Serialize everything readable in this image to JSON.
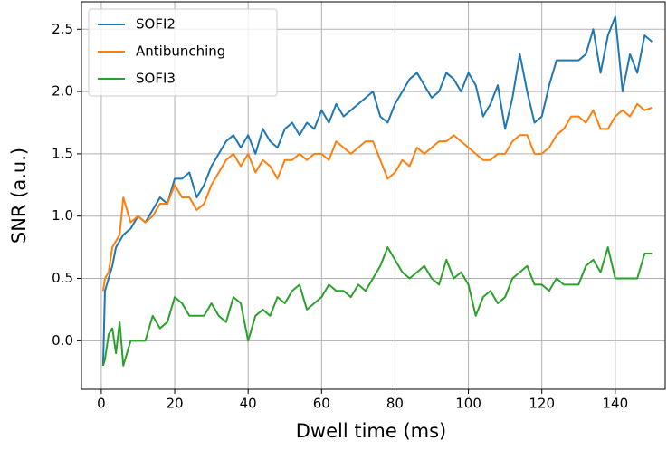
{
  "chart_data": {
    "type": "line",
    "xlabel": "Dwell time (ms)",
    "ylabel": "SNR (a.u.)",
    "x": [
      0.5,
      1,
      2,
      3,
      4,
      5,
      6,
      8,
      10,
      12,
      14,
      16,
      18,
      20,
      22,
      24,
      26,
      28,
      30,
      32,
      34,
      36,
      38,
      40,
      42,
      44,
      46,
      48,
      50,
      52,
      54,
      56,
      58,
      60,
      62,
      64,
      66,
      68,
      70,
      72,
      74,
      76,
      78,
      80,
      82,
      84,
      86,
      88,
      90,
      92,
      94,
      96,
      98,
      100,
      102,
      104,
      106,
      108,
      110,
      112,
      114,
      116,
      118,
      120,
      122,
      124,
      126,
      128,
      130,
      132,
      134,
      136,
      138,
      140,
      142,
      144,
      146,
      148,
      150
    ],
    "series": [
      {
        "name": "SOFI2",
        "color": "#1f77b4",
        "values": [
          -0.2,
          0.4,
          0.5,
          0.6,
          0.75,
          0.8,
          0.85,
          0.9,
          1.0,
          0.95,
          1.05,
          1.15,
          1.1,
          1.3,
          1.3,
          1.35,
          1.15,
          1.25,
          1.4,
          1.5,
          1.6,
          1.65,
          1.55,
          1.65,
          1.5,
          1.7,
          1.6,
          1.55,
          1.7,
          1.75,
          1.65,
          1.75,
          1.7,
          1.85,
          1.75,
          1.9,
          1.8,
          1.85,
          1.9,
          1.95,
          2.0,
          1.8,
          1.75,
          1.9,
          2.0,
          2.1,
          2.15,
          2.05,
          1.95,
          2.0,
          2.15,
          2.1,
          2.0,
          2.15,
          2.05,
          1.8,
          1.9,
          2.05,
          1.7,
          1.95,
          2.3,
          2.0,
          1.75,
          1.8,
          2.05,
          2.25,
          2.25,
          2.25,
          2.25,
          2.3,
          2.5,
          2.15,
          2.45,
          2.6,
          2.0,
          2.3,
          2.15,
          2.45,
          2.4
        ]
      },
      {
        "name": "Antibunching",
        "color": "#ff7f0e",
        "values": [
          0.4,
          0.5,
          0.55,
          0.75,
          0.8,
          0.85,
          1.15,
          0.95,
          1.0,
          0.95,
          1.0,
          1.1,
          1.1,
          1.25,
          1.15,
          1.15,
          1.05,
          1.1,
          1.25,
          1.35,
          1.45,
          1.5,
          1.4,
          1.5,
          1.35,
          1.45,
          1.4,
          1.3,
          1.45,
          1.45,
          1.5,
          1.45,
          1.5,
          1.5,
          1.45,
          1.6,
          1.55,
          1.5,
          1.55,
          1.6,
          1.6,
          1.45,
          1.3,
          1.35,
          1.45,
          1.4,
          1.55,
          1.5,
          1.55,
          1.6,
          1.6,
          1.65,
          1.6,
          1.55,
          1.5,
          1.45,
          1.45,
          1.5,
          1.5,
          1.6,
          1.65,
          1.65,
          1.5,
          1.5,
          1.55,
          1.65,
          1.7,
          1.8,
          1.8,
          1.75,
          1.85,
          1.7,
          1.7,
          1.8,
          1.85,
          1.8,
          1.9,
          1.85,
          1.87
        ]
      },
      {
        "name": "SOFI3",
        "color": "#2ca02c",
        "values": [
          -0.2,
          -0.15,
          0.05,
          0.1,
          -0.1,
          0.15,
          -0.2,
          0.0,
          0.0,
          0.0,
          0.2,
          0.1,
          0.15,
          0.35,
          0.3,
          0.2,
          0.2,
          0.2,
          0.3,
          0.2,
          0.15,
          0.35,
          0.3,
          0.0,
          0.2,
          0.25,
          0.2,
          0.35,
          0.3,
          0.4,
          0.45,
          0.25,
          0.3,
          0.35,
          0.45,
          0.4,
          0.4,
          0.35,
          0.45,
          0.4,
          0.5,
          0.6,
          0.75,
          0.65,
          0.55,
          0.5,
          0.55,
          0.6,
          0.5,
          0.45,
          0.65,
          0.5,
          0.55,
          0.45,
          0.2,
          0.35,
          0.4,
          0.3,
          0.35,
          0.5,
          0.55,
          0.6,
          0.45,
          0.45,
          0.4,
          0.5,
          0.45,
          0.45,
          0.45,
          0.6,
          0.65,
          0.55,
          0.75,
          0.5,
          0.5,
          0.5,
          0.5,
          0.7,
          0.7
        ]
      }
    ],
    "xlim": [
      -5.4,
      153.6
    ],
    "ylim": [
      -0.39,
      2.72
    ],
    "xticks": [
      0,
      20,
      40,
      60,
      80,
      100,
      120,
      140
    ],
    "yticks": [
      {
        "value": 0,
        "label": "0.0"
      },
      0.5,
      {
        "value": 1,
        "label": "1.0"
      },
      1.5,
      {
        "value": 2,
        "label": "2.0"
      },
      2.5
    ],
    "grid": true,
    "legend": "upper-left"
  }
}
